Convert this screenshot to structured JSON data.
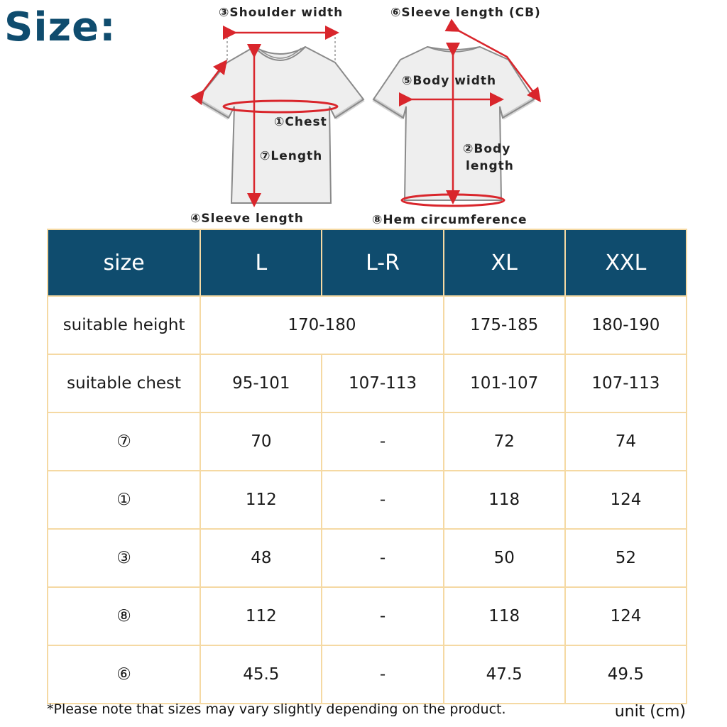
{
  "title": "Size:",
  "diagram": {
    "shoulder_width": "③Shoulder width",
    "sleeve_length_cb": "⑥Sleeve length (CB)",
    "body_width": "⑤Body width",
    "chest": "①Chest",
    "length": "⑦Length",
    "body_length_1": "②Body",
    "body_length_2": "length",
    "sleeve_length": "④Sleeve length",
    "hem_circumference": "⑧Hem circumference"
  },
  "table": {
    "header": [
      "size",
      "L",
      "L-R",
      "XL",
      "XXL"
    ],
    "suitable_height": {
      "label": "suitable height",
      "l_lr": "170-180",
      "xl": "175-185",
      "xxl": "180-190"
    },
    "rows": [
      [
        "suitable chest",
        "95-101",
        "107-113",
        "101-107",
        "107-113"
      ],
      [
        "⑦",
        "70",
        "-",
        "72",
        "74"
      ],
      [
        "①",
        "112",
        "-",
        "118",
        "124"
      ],
      [
        "③",
        "48",
        "-",
        "50",
        "52"
      ],
      [
        "⑧",
        "112",
        "-",
        "118",
        "124"
      ],
      [
        "⑥",
        "45.5",
        "-",
        "47.5",
        "49.5"
      ]
    ]
  },
  "note": "*Please note that sizes may vary slightly depending on the product.",
  "unit": "unit (cm)",
  "colors": {
    "header_bg": "#0f4c6e",
    "border": "#f5d9a3",
    "arrow": "#d9262c"
  }
}
